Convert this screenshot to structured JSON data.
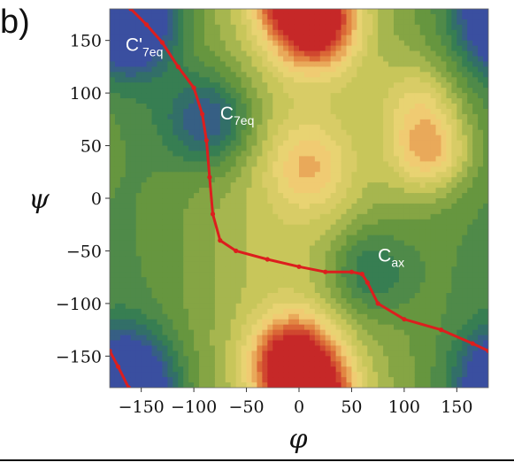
{
  "panel_label": "b)",
  "chart_data": {
    "type": "heatmap",
    "subtype": "contour",
    "xlabel": "φ",
    "ylabel": "ψ",
    "xlim": [
      -180,
      180
    ],
    "ylim": [
      -180,
      180
    ],
    "xticks": [
      -150,
      -100,
      -50,
      0,
      50,
      100,
      150
    ],
    "yticks": [
      -150,
      -100,
      -50,
      0,
      50,
      100,
      150
    ],
    "xtick_labels": [
      "−150",
      "−100",
      "−50",
      "0",
      "50",
      "100",
      "150"
    ],
    "ytick_labels": [
      "−150",
      "−100",
      "−50",
      "0",
      "50",
      "100",
      "150"
    ],
    "colorscale": [
      "#3a4fa0",
      "#2f7a55",
      "#6e9a3c",
      "#c8c65a",
      "#f2d77a",
      "#e07a3a",
      "#c62828"
    ],
    "path_color": "#dc1e1e",
    "annotations": [
      {
        "name": "C'7eq",
        "main": "C'",
        "sub": "7eq",
        "phi": -165,
        "psi": 140
      },
      {
        "name": "C7eq",
        "main": "C",
        "sub": "7eq",
        "phi": -75,
        "psi": 75
      },
      {
        "name": "Cax",
        "main": "C",
        "sub": "ax",
        "phi": 75,
        "psi": -60
      }
    ],
    "minima": [
      {
        "phi": -160,
        "psi": 160,
        "depth": 1.05
      },
      {
        "phi": -85,
        "psi": 75,
        "depth": 0.95
      },
      {
        "phi": 65,
        "psi": -70,
        "depth": 0.7
      },
      {
        "phi": -165,
        "psi": -165,
        "depth": 0.9
      }
    ],
    "maxima": [
      {
        "phi": 15,
        "psi": 165,
        "height": 1.5
      },
      {
        "phi": -5,
        "psi": -155,
        "height": 1.6
      },
      {
        "phi": 125,
        "psi": 45,
        "height": 0.95
      },
      {
        "phi": 115,
        "psi": 95,
        "height": 0.5
      },
      {
        "phi": 10,
        "psi": 30,
        "height": 0.55
      }
    ],
    "reaction_path": [
      [
        -160,
        180
      ],
      [
        -145,
        165
      ],
      [
        -130,
        148
      ],
      [
        -115,
        125
      ],
      [
        -100,
        105
      ],
      [
        -92,
        80
      ],
      [
        -88,
        55
      ],
      [
        -85,
        20
      ],
      [
        -82,
        -15
      ],
      [
        -75,
        -40
      ],
      [
        -60,
        -50
      ],
      [
        -30,
        -58
      ],
      [
        0,
        -65
      ],
      [
        25,
        -70
      ],
      [
        50,
        -70
      ],
      [
        60,
        -72
      ],
      [
        65,
        -80
      ],
      [
        75,
        -100
      ],
      [
        100,
        -115
      ],
      [
        135,
        -125
      ],
      [
        165,
        -138
      ],
      [
        180,
        -145
      ]
    ],
    "reaction_path_wrap": [
      [
        -180,
        -145
      ],
      [
        -172,
        -160
      ],
      [
        -162,
        -180
      ]
    ]
  }
}
